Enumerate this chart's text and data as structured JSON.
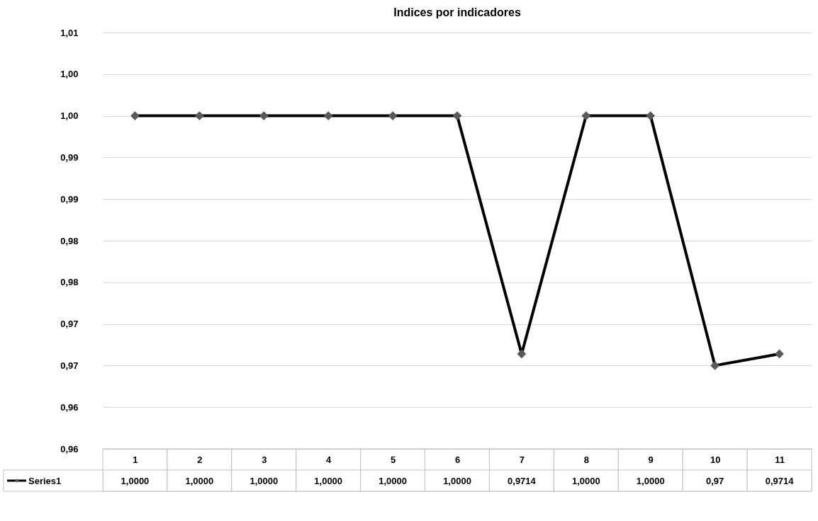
{
  "chart_data": {
    "type": "line",
    "title": "Indices por indicadores",
    "categories": [
      "1",
      "2",
      "3",
      "4",
      "5",
      "6",
      "7",
      "8",
      "9",
      "10",
      "11"
    ],
    "series": [
      {
        "name": "Series1",
        "color": "#000000",
        "values": [
          1.0,
          1.0,
          1.0,
          1.0,
          1.0,
          1.0,
          0.9714,
          1.0,
          1.0,
          0.97,
          0.9714
        ],
        "value_labels": [
          "1,0000",
          "1,0000",
          "1,0000",
          "1,0000",
          "1,0000",
          "1,0000",
          "0,9714",
          "1,0000",
          "1,0000",
          "0,97",
          "0,9714"
        ]
      }
    ],
    "ylim": [
      0.96,
      1.01
    ],
    "yticks": [
      {
        "value": 0.96,
        "label": "0,96"
      },
      {
        "value": 0.965,
        "label": "0,96"
      },
      {
        "value": 0.97,
        "label": "0,97"
      },
      {
        "value": 0.975,
        "label": "0,97"
      },
      {
        "value": 0.98,
        "label": "0,98"
      },
      {
        "value": 0.985,
        "label": "0,98"
      },
      {
        "value": 0.99,
        "label": "0,99"
      },
      {
        "value": 0.995,
        "label": "0,99"
      },
      {
        "value": 1.0,
        "label": "1,00"
      },
      {
        "value": 1.005,
        "label": "1,00"
      },
      {
        "value": 1.01,
        "label": "1,01"
      }
    ],
    "grid": "y",
    "marker": "diamond",
    "line_style": "solid",
    "legend": "bottom"
  }
}
